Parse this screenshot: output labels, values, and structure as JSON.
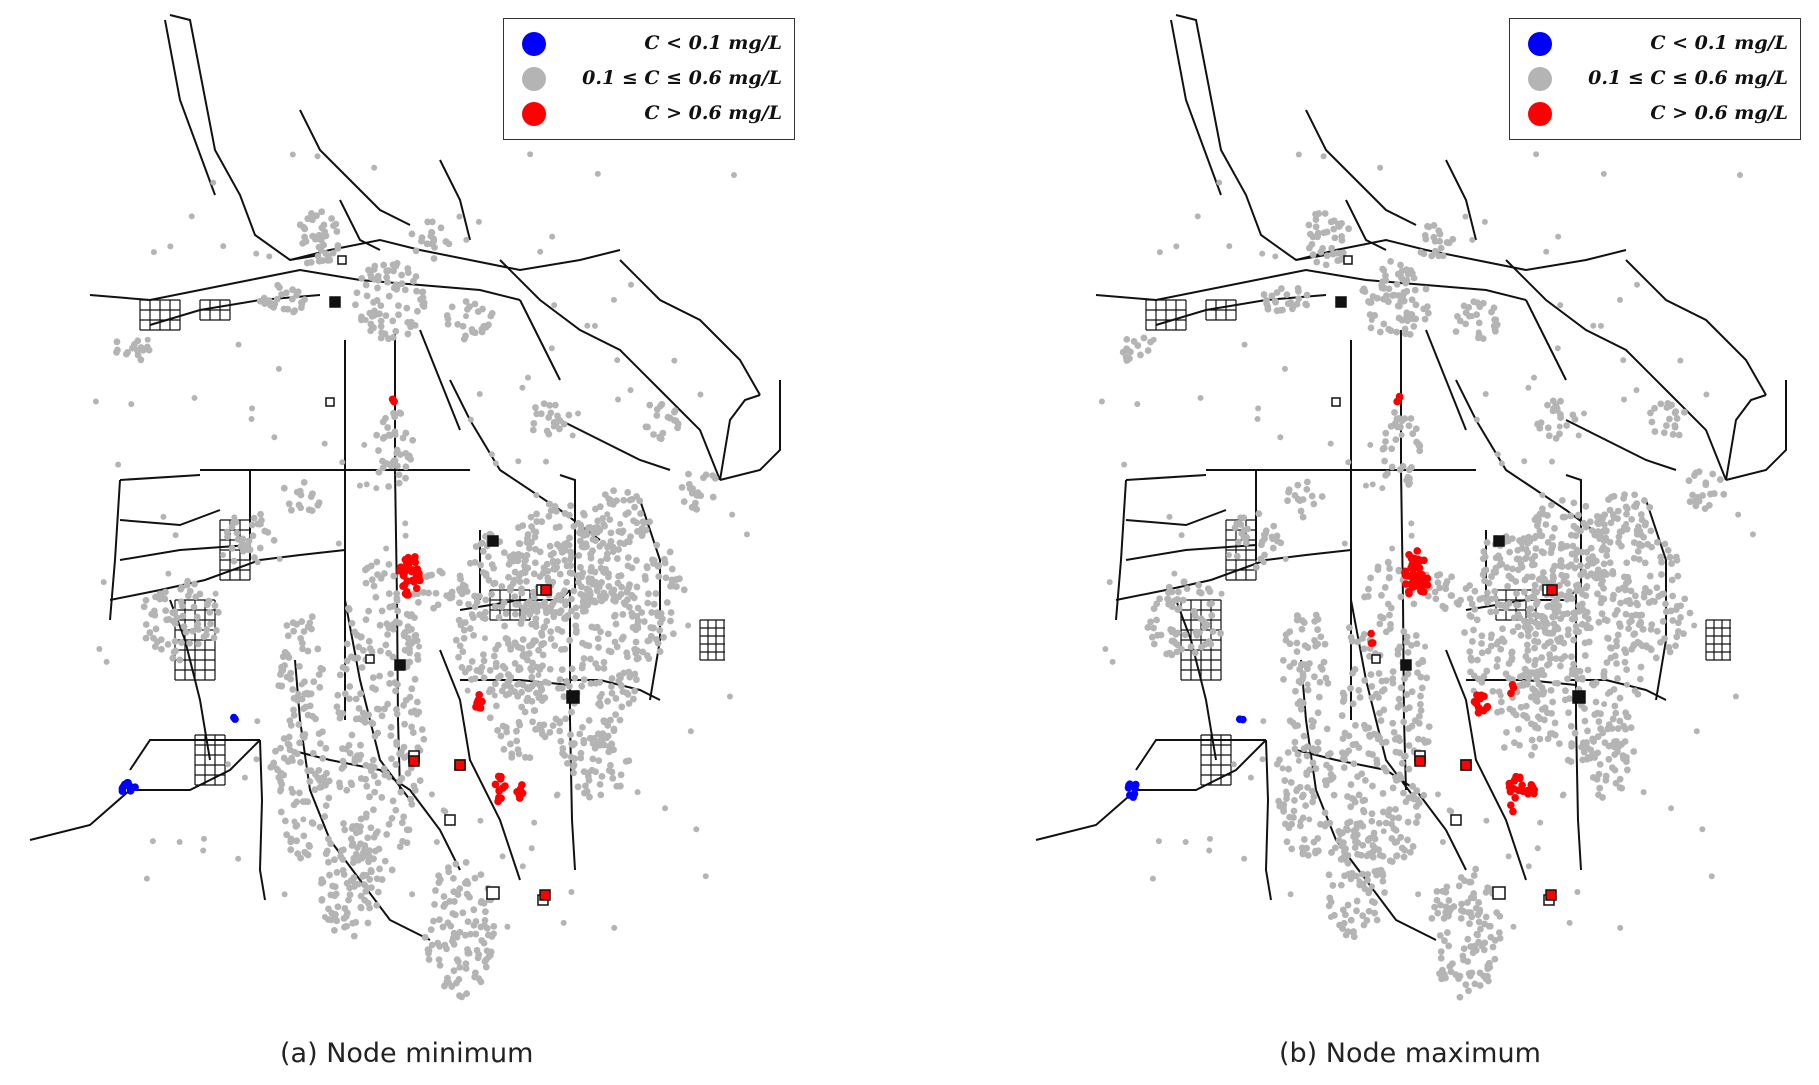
{
  "colors": {
    "low": "#0000ff",
    "normal": "#b4b4b4",
    "high": "#ff0000",
    "pipe": "#111111"
  },
  "legend": {
    "low_label": "C < 0.1 mg/L",
    "normal_label": "0.1 ≤ C ≤ 0.6 mg/L",
    "high_label": "C > 0.6 mg/L"
  },
  "panels": [
    {
      "id": "a",
      "caption": "(a) Node minimum"
    },
    {
      "id": "b",
      "caption": "(b) Node maximum"
    }
  ]
}
